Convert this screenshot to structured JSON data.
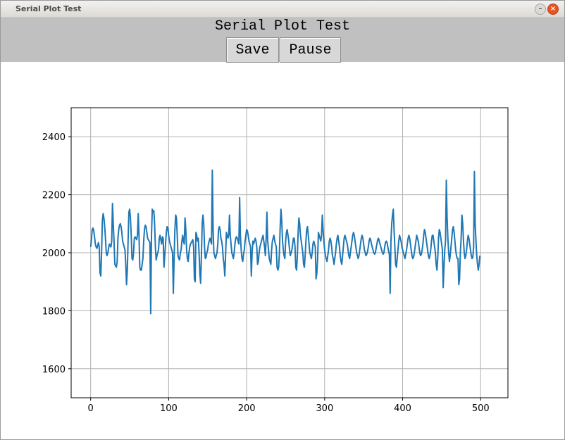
{
  "window": {
    "title": "Serial Plot Test",
    "minimize_icon": "minimize-icon",
    "close_icon": "close-icon"
  },
  "toolbar": {
    "title": "Serial Plot Test",
    "save_label": "Save",
    "pause_label": "Pause"
  },
  "chart_data": {
    "type": "line",
    "title": "",
    "xlabel": "",
    "ylabel": "",
    "xlim": [
      -25,
      535
    ],
    "ylim": [
      1500,
      2500
    ],
    "grid": true,
    "x_ticks": [
      0,
      100,
      200,
      300,
      400,
      500
    ],
    "y_ticks": [
      1600,
      1800,
      2000,
      2200,
      2400
    ],
    "series": [
      {
        "color": "#1f77b4",
        "x_start": 0,
        "x_step": 1,
        "values": [
          2020,
          2045,
          2080,
          2085,
          2075,
          2055,
          2030,
          2020,
          2015,
          2025,
          2035,
          2020,
          1930,
          1920,
          2000,
          2110,
          2135,
          2120,
          2090,
          2050,
          2000,
          1990,
          2000,
          2015,
          2030,
          2025,
          2020,
          2040,
          2170,
          2100,
          2040,
          1960,
          1955,
          1950,
          1970,
          2050,
          2080,
          2095,
          2100,
          2090,
          2070,
          2040,
          2030,
          2020,
          2010,
          1960,
          1890,
          1940,
          2040,
          2140,
          2150,
          2120,
          2060,
          1980,
          1975,
          2000,
          2050,
          2055,
          2050,
          2045,
          2060,
          2135,
          2060,
          1950,
          1940,
          1940,
          1960,
          1980,
          2040,
          2080,
          2095,
          2090,
          2070,
          2050,
          2045,
          2040,
          2035,
          1790,
          2060,
          2150,
          2140,
          2145,
          2100,
          2020,
          1975,
          1990,
          2000,
          2010,
          2050,
          2060,
          2045,
          2030,
          2055,
          2050,
          1950,
          1990,
          2030,
          2070,
          2090,
          2085,
          2060,
          2040,
          2030,
          2020,
          2010,
          2000,
          1860,
          1980,
          2080,
          2130,
          2120,
          2060,
          1990,
          1980,
          1975,
          2000,
          2010,
          2040,
          2060,
          2040,
          2030,
          2120,
          2080,
          2010,
          1980,
          1970,
          2000,
          2020,
          2030,
          2035,
          2040,
          2045,
          2020,
          1910,
          1900,
          2070,
          2060,
          2040,
          2050,
          2000,
          1930,
          1895,
          1990,
          2100,
          2130,
          2100,
          2020,
          1980,
          1985,
          2000,
          2010,
          2030,
          2040,
          2050,
          2040,
          2030,
          2285,
          2080,
          2000,
          1990,
          1980,
          1990,
          2000,
          2030,
          2080,
          2090,
          2080,
          2050,
          2040,
          2020,
          1980,
          1960,
          1920,
          1990,
          2070,
          2060,
          2050,
          2060,
          2130,
          2060,
          2030,
          2000,
          1990,
          1980,
          2000,
          2030,
          2050,
          2055,
          2050,
          2040,
          2030,
          2190,
          2060,
          2010,
          1980,
          1970,
          1995,
          2010,
          2040,
          2060,
          2080,
          2075,
          2060,
          2040,
          2030,
          2020,
          1920,
          2000,
          2040,
          2030,
          2040,
          2050,
          2040,
          2020,
          1960,
          1970,
          2000,
          2020,
          2030,
          2040,
          2050,
          2060,
          2040,
          2020,
          1990,
          2050,
          2140,
          2040,
          2010,
          1980,
          1970,
          1960,
          2010,
          2040,
          2050,
          2060,
          2040,
          2030,
          2020,
          1950,
          1940,
          1950,
          2000,
          2090,
          2150,
          2110,
          2040,
          2010,
          1990,
          1980,
          2040,
          2070,
          2080,
          2060,
          2040,
          2010,
          1990,
          2000,
          2010,
          2030,
          2050,
          2050,
          2020,
          1950,
          1940,
          1990,
          2070,
          2120,
          2100,
          2060,
          2040,
          2020,
          2000,
          1960,
          1950,
          1990,
          2040,
          2080,
          2090,
          2060,
          2030,
          2000,
          1990,
          1980,
          2000,
          2030,
          2040,
          2030,
          2020,
          1910,
          1930,
          1980,
          2070,
          2060,
          2050,
          2040,
          2060,
          2130,
          2080,
          2040,
          2010,
          1990,
          1980,
          1970,
          1990,
          2010,
          2040,
          2050,
          2040,
          2020,
          1990,
          1980,
          1960,
          1980,
          2000,
          2030,
          2050,
          2060,
          2040,
          2020,
          1990,
          1970,
          1960,
          1990,
          2020,
          2050,
          2060,
          2050,
          2040,
          2030,
          2010,
          1990,
          1980,
          2000,
          2020,
          2040,
          2060,
          2070,
          2060,
          2040,
          2020,
          2000,
          1990,
          1980,
          1990,
          2010,
          2030,
          2050,
          2060,
          2050,
          2030,
          2010,
          2000,
          1990,
          1995,
          2005,
          2020,
          2040,
          2050,
          2045,
          2030,
          2020,
          2010,
          2000,
          1995,
          2000,
          2015,
          2030,
          2045,
          2050,
          2040,
          2030,
          2020,
          2010,
          2000,
          1995,
          2000,
          2020,
          2035,
          2040,
          2035,
          2020,
          2005,
          1995,
          1860,
          2040,
          2100,
          2130,
          2150,
          2080,
          2020,
          1960,
          1950,
          1980,
          2010,
          2040,
          2060,
          2050,
          2040,
          2020,
          2010,
          2000,
          1990,
          1980,
          1995,
          2010,
          2030,
          2050,
          2060,
          2050,
          2030,
          2010,
          1990,
          1980,
          1985,
          2000,
          2020,
          2040,
          2060,
          2050,
          2040,
          2020,
          2000,
          1990,
          1995,
          2010,
          2030,
          2060,
          2080,
          2070,
          2050,
          2030,
          2010,
          1990,
          1980,
          1990,
          2010,
          2040,
          2060,
          2060,
          2040,
          2020,
          2000,
          1960,
          1940,
          1980,
          2050,
          2080,
          2070,
          2050,
          2030,
          2010,
          1880,
          1950,
          2010,
          2040,
          2250,
          2120,
          2050,
          2000,
          1970,
          1990,
          2020,
          2050,
          2080,
          2090,
          2070,
          2040,
          2010,
          1990,
          1980,
          1980,
          1890,
          1910,
          2000,
          2050,
          2130,
          2100,
          2040,
          2000,
          1980,
          1990,
          2010,
          2040,
          2060,
          2050,
          2030,
          2010,
          1990,
          1980,
          1985,
          2020,
          2280,
          2100,
          2040,
          1990,
          1960,
          1940,
          1960,
          1990
        ]
      }
    ]
  }
}
